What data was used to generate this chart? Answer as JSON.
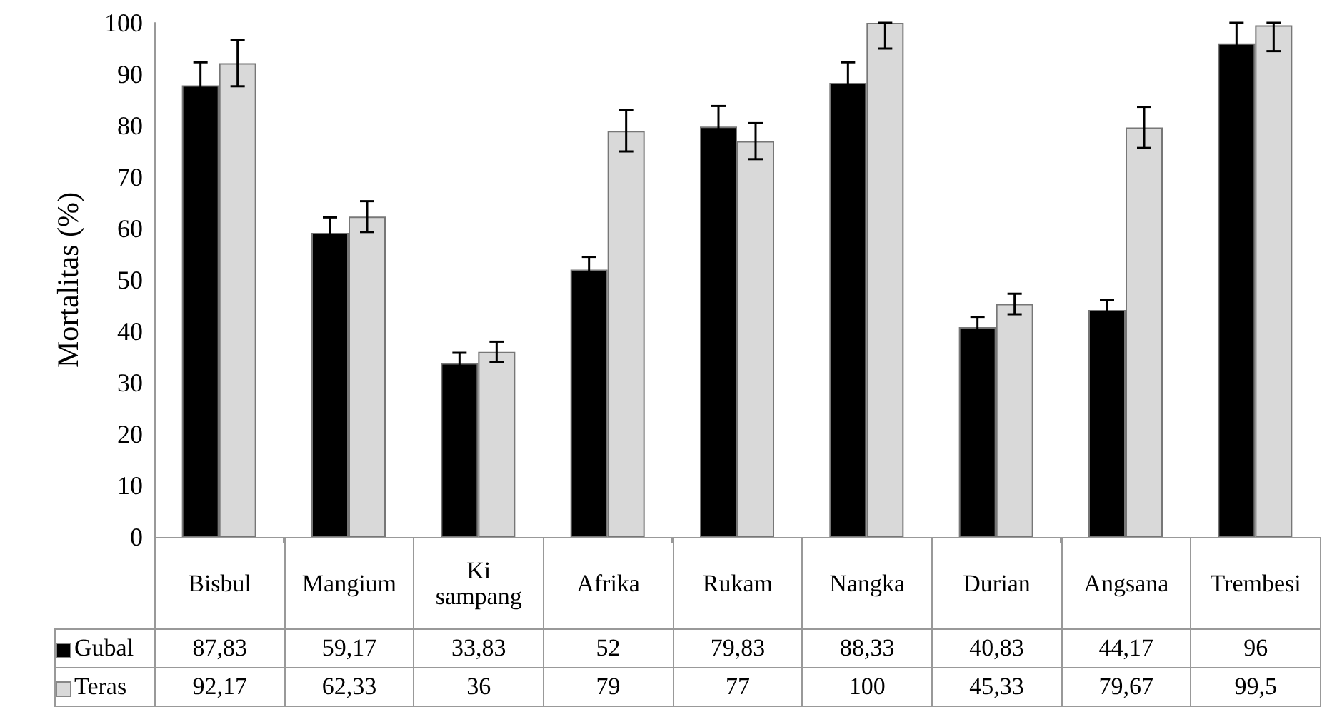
{
  "chart_data": {
    "type": "bar",
    "ylabel": "Mortalitas (%)",
    "categories": [
      "Bisbul",
      "Mangium",
      "Ki sampang",
      "Afrika",
      "Rukam",
      "Nangka",
      "Durian",
      "Angsana",
      "Trembesi"
    ],
    "series": [
      {
        "name": "Gubal",
        "color": "#000000",
        "values": [
          87.83,
          59.17,
          33.83,
          52,
          79.83,
          88.33,
          40.83,
          44.17,
          96
        ],
        "value_labels": [
          "87,83",
          "59,17",
          "33,83",
          "52",
          "79,83",
          "88,33",
          "40,83",
          "44,17",
          "96"
        ],
        "errors": [
          4.5,
          3,
          2,
          2.5,
          4,
          4,
          2,
          2,
          4
        ]
      },
      {
        "name": "Teras",
        "color": "#d9d9d9",
        "values": [
          92.17,
          62.33,
          36,
          79,
          77,
          100,
          45.33,
          79.67,
          99.5
        ],
        "value_labels": [
          "92,17",
          "62,33",
          "36",
          "79",
          "77",
          "100",
          "45,33",
          "79,67",
          "99,5"
        ],
        "errors": [
          4.5,
          3,
          2,
          4,
          3.5,
          [
            95,
            100
          ],
          2,
          4,
          [
            94.5,
            100
          ]
        ]
      }
    ],
    "ylim": [
      0,
      100
    ],
    "yticks": [
      0,
      10,
      20,
      30,
      40,
      50,
      60,
      70,
      80,
      90,
      100
    ],
    "grid": false,
    "legend": "bottom left"
  }
}
